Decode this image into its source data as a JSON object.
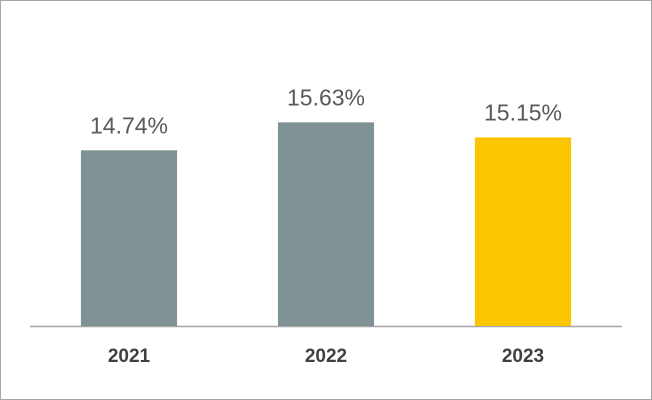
{
  "chart_data": {
    "type": "bar",
    "categories": [
      "2021",
      "2022",
      "2023"
    ],
    "values": [
      14.74,
      15.63,
      15.15
    ],
    "value_labels": [
      "14.74%",
      "15.63%",
      "15.15%"
    ],
    "colors": [
      "#7f9395",
      "#7f9395",
      "#fbc600"
    ],
    "ylim": [
      9.15,
      16.5
    ]
  }
}
